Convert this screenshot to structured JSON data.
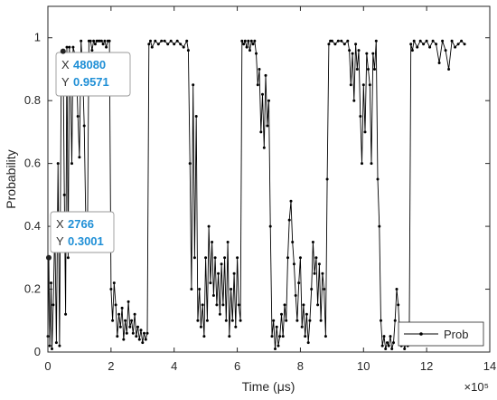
{
  "chart_data": {
    "type": "line",
    "xlabel": "Time (μs)",
    "ylabel": "Probability",
    "x_exponent": "×10⁵",
    "xlim": [
      0,
      14
    ],
    "ylim": [
      0,
      1.1
    ],
    "x_ticks": [
      0,
      2,
      4,
      6,
      8,
      10,
      12,
      14
    ],
    "y_ticks": [
      0,
      0.2,
      0.4,
      0.6,
      0.8,
      1
    ],
    "x_tick_labels": [
      "0",
      "2",
      "4",
      "6",
      "8",
      "10",
      "12",
      "14"
    ],
    "y_tick_labels": [
      "0",
      "0.2",
      "0.4",
      "0.6",
      "0.8",
      "1"
    ],
    "legend_position": "bottom-right",
    "series": [
      {
        "name": "Prob",
        "color": "#000000",
        "points": [
          [
            0.0,
            0.05
          ],
          [
            0.03,
            0.3
          ],
          [
            0.06,
            0.02
          ],
          [
            0.1,
            0.22
          ],
          [
            0.13,
            0.01
          ],
          [
            0.17,
            0.15
          ],
          [
            0.22,
            0.4
          ],
          [
            0.27,
            0.03
          ],
          [
            0.32,
            0.6
          ],
          [
            0.37,
            0.02
          ],
          [
            0.42,
            0.85
          ],
          [
            0.48,
            0.96
          ],
          [
            0.52,
            0.5
          ],
          [
            0.56,
            0.12
          ],
          [
            0.6,
            0.97
          ],
          [
            0.64,
            0.3
          ],
          [
            0.68,
            0.97
          ],
          [
            0.72,
            0.85
          ],
          [
            0.76,
            0.6
          ],
          [
            0.8,
            0.97
          ],
          [
            0.85,
            0.95
          ],
          [
            0.9,
            0.92
          ],
          [
            0.95,
            0.75
          ],
          [
            1.0,
            0.62
          ],
          [
            1.05,
            0.99
          ],
          [
            1.1,
            0.9
          ],
          [
            1.15,
            0.72
          ],
          [
            1.2,
            0.42
          ],
          [
            1.25,
            0.34
          ],
          [
            1.3,
            0.99
          ],
          [
            1.35,
            0.99
          ],
          [
            1.4,
            0.96
          ],
          [
            1.45,
            0.99
          ],
          [
            1.5,
            0.98
          ],
          [
            1.55,
            0.99
          ],
          [
            1.6,
            0.99
          ],
          [
            1.65,
            0.99
          ],
          [
            1.7,
            0.99
          ],
          [
            1.75,
            0.98
          ],
          [
            1.8,
            0.99
          ],
          [
            1.85,
            0.97
          ],
          [
            1.9,
            0.99
          ],
          [
            1.95,
            0.99
          ],
          [
            2.0,
            0.2
          ],
          [
            2.05,
            0.1
          ],
          [
            2.1,
            0.22
          ],
          [
            2.15,
            0.15
          ],
          [
            2.2,
            0.05
          ],
          [
            2.25,
            0.12
          ],
          [
            2.3,
            0.08
          ],
          [
            2.35,
            0.14
          ],
          [
            2.4,
            0.04
          ],
          [
            2.45,
            0.1
          ],
          [
            2.5,
            0.06
          ],
          [
            2.55,
            0.16
          ],
          [
            2.6,
            0.08
          ],
          [
            2.65,
            0.1
          ],
          [
            2.7,
            0.06
          ],
          [
            2.75,
            0.12
          ],
          [
            2.8,
            0.05
          ],
          [
            2.85,
            0.08
          ],
          [
            2.9,
            0.04
          ],
          [
            2.95,
            0.07
          ],
          [
            3.0,
            0.03
          ],
          [
            3.05,
            0.06
          ],
          [
            3.1,
            0.04
          ],
          [
            3.15,
            0.06
          ],
          [
            3.2,
            0.98
          ],
          [
            3.25,
            0.99
          ],
          [
            3.3,
            0.97
          ],
          [
            3.4,
            0.99
          ],
          [
            3.5,
            0.98
          ],
          [
            3.6,
            0.99
          ],
          [
            3.7,
            0.99
          ],
          [
            3.8,
            0.98
          ],
          [
            3.9,
            0.99
          ],
          [
            4.0,
            0.98
          ],
          [
            4.1,
            0.99
          ],
          [
            4.2,
            0.98
          ],
          [
            4.3,
            0.97
          ],
          [
            4.4,
            0.99
          ],
          [
            4.45,
            0.96
          ],
          [
            4.5,
            0.6
          ],
          [
            4.55,
            0.2
          ],
          [
            4.6,
            0.85
          ],
          [
            4.65,
            0.3
          ],
          [
            4.7,
            0.75
          ],
          [
            4.75,
            0.1
          ],
          [
            4.8,
            0.2
          ],
          [
            4.85,
            0.08
          ],
          [
            4.9,
            0.15
          ],
          [
            4.95,
            0.05
          ],
          [
            5.0,
            0.3
          ],
          [
            5.05,
            0.1
          ],
          [
            5.1,
            0.4
          ],
          [
            5.15,
            0.22
          ],
          [
            5.2,
            0.35
          ],
          [
            5.25,
            0.18
          ],
          [
            5.3,
            0.3
          ],
          [
            5.35,
            0.15
          ],
          [
            5.4,
            0.25
          ],
          [
            5.45,
            0.12
          ],
          [
            5.5,
            0.28
          ],
          [
            5.55,
            0.15
          ],
          [
            5.6,
            0.3
          ],
          [
            5.65,
            0.1
          ],
          [
            5.7,
            0.35
          ],
          [
            5.75,
            0.05
          ],
          [
            5.8,
            0.2
          ],
          [
            5.85,
            0.1
          ],
          [
            5.9,
            0.25
          ],
          [
            5.95,
            0.08
          ],
          [
            6.0,
            0.3
          ],
          [
            6.05,
            0.15
          ],
          [
            6.1,
            0.1
          ],
          [
            6.15,
            0.99
          ],
          [
            6.2,
            0.98
          ],
          [
            6.25,
            0.99
          ],
          [
            6.3,
            0.97
          ],
          [
            6.35,
            0.99
          ],
          [
            6.4,
            0.96
          ],
          [
            6.45,
            0.99
          ],
          [
            6.5,
            0.98
          ],
          [
            6.55,
            0.99
          ],
          [
            6.6,
            0.95
          ],
          [
            6.65,
            0.85
          ],
          [
            6.7,
            0.9
          ],
          [
            6.75,
            0.7
          ],
          [
            6.8,
            0.82
          ],
          [
            6.85,
            0.65
          ],
          [
            6.9,
            0.88
          ],
          [
            6.95,
            0.72
          ],
          [
            7.0,
            0.8
          ],
          [
            7.05,
            0.4
          ],
          [
            7.1,
            0.05
          ],
          [
            7.15,
            0.1
          ],
          [
            7.2,
            0.01
          ],
          [
            7.25,
            0.08
          ],
          [
            7.3,
            0.02
          ],
          [
            7.35,
            0.05
          ],
          [
            7.4,
            0.12
          ],
          [
            7.45,
            0.05
          ],
          [
            7.5,
            0.15
          ],
          [
            7.55,
            0.1
          ],
          [
            7.6,
            0.3
          ],
          [
            7.65,
            0.42
          ],
          [
            7.7,
            0.48
          ],
          [
            7.75,
            0.35
          ],
          [
            7.8,
            0.28
          ],
          [
            7.85,
            0.18
          ],
          [
            7.9,
            0.1
          ],
          [
            7.95,
            0.22
          ],
          [
            8.0,
            0.3
          ],
          [
            8.05,
            0.08
          ],
          [
            8.1,
            0.15
          ],
          [
            8.15,
            0.05
          ],
          [
            8.2,
            0.12
          ],
          [
            8.25,
            0.03
          ],
          [
            8.3,
            0.1
          ],
          [
            8.35,
            0.2
          ],
          [
            8.4,
            0.35
          ],
          [
            8.45,
            0.25
          ],
          [
            8.5,
            0.3
          ],
          [
            8.55,
            0.15
          ],
          [
            8.6,
            0.28
          ],
          [
            8.65,
            0.1
          ],
          [
            8.7,
            0.25
          ],
          [
            8.75,
            0.2
          ],
          [
            8.8,
            0.05
          ],
          [
            8.85,
            0.55
          ],
          [
            8.9,
            0.98
          ],
          [
            8.95,
            0.99
          ],
          [
            9.0,
            0.99
          ],
          [
            9.1,
            0.98
          ],
          [
            9.2,
            0.99
          ],
          [
            9.3,
            0.99
          ],
          [
            9.4,
            0.98
          ],
          [
            9.5,
            0.99
          ],
          [
            9.55,
            0.96
          ],
          [
            9.6,
            0.85
          ],
          [
            9.65,
            0.95
          ],
          [
            9.7,
            0.8
          ],
          [
            9.75,
            0.98
          ],
          [
            9.8,
            0.9
          ],
          [
            9.85,
            0.96
          ],
          [
            9.9,
            0.75
          ],
          [
            9.95,
            0.6
          ],
          [
            10.0,
            0.85
          ],
          [
            10.05,
            0.7
          ],
          [
            10.1,
            0.95
          ],
          [
            10.15,
            0.9
          ],
          [
            10.2,
            0.85
          ],
          [
            10.25,
            0.6
          ],
          [
            10.3,
            0.95
          ],
          [
            10.35,
            0.9
          ],
          [
            10.4,
            0.99
          ],
          [
            10.45,
            0.55
          ],
          [
            10.5,
            0.4
          ],
          [
            10.55,
            0.1
          ],
          [
            10.6,
            0.02
          ],
          [
            10.65,
            0.05
          ],
          [
            10.7,
            0.01
          ],
          [
            10.75,
            0.03
          ],
          [
            10.8,
            0.02
          ],
          [
            10.85,
            0.05
          ],
          [
            10.9,
            0.01
          ],
          [
            10.95,
            0.03
          ],
          [
            11.0,
            0.1
          ],
          [
            11.05,
            0.2
          ],
          [
            11.1,
            0.15
          ],
          [
            11.15,
            0.05
          ],
          [
            11.2,
            0.02
          ],
          [
            11.25,
            0.04
          ],
          [
            11.3,
            0.01
          ],
          [
            11.35,
            0.03
          ],
          [
            11.4,
            0.02
          ],
          [
            11.45,
            0.05
          ],
          [
            11.5,
            0.98
          ],
          [
            11.55,
            0.96
          ],
          [
            11.6,
            0.99
          ],
          [
            11.7,
            0.97
          ],
          [
            11.8,
            0.99
          ],
          [
            11.9,
            0.98
          ],
          [
            12.0,
            0.99
          ],
          [
            12.1,
            0.97
          ],
          [
            12.2,
            0.99
          ],
          [
            12.3,
            0.98
          ],
          [
            12.4,
            0.92
          ],
          [
            12.5,
            0.99
          ],
          [
            12.6,
            0.96
          ],
          [
            12.7,
            0.9
          ],
          [
            12.8,
            0.99
          ],
          [
            12.9,
            0.97
          ],
          [
            13.0,
            0.98
          ],
          [
            13.1,
            0.99
          ],
          [
            13.2,
            0.98
          ]
        ]
      }
    ],
    "datatips": [
      {
        "x_label": "X",
        "x_value": "48080",
        "y_label": "Y",
        "y_value": "0.9571",
        "x": 0.4808,
        "y": 0.9571
      },
      {
        "x_label": "X",
        "x_value": "2766",
        "y_label": "Y",
        "y_value": "0.3001",
        "x": 0.02766,
        "y": 0.3001
      }
    ]
  },
  "colors": {
    "axes": "#262626",
    "line": "#000000",
    "tip_value": "#1f8fd6",
    "tip_label": "#333333"
  }
}
